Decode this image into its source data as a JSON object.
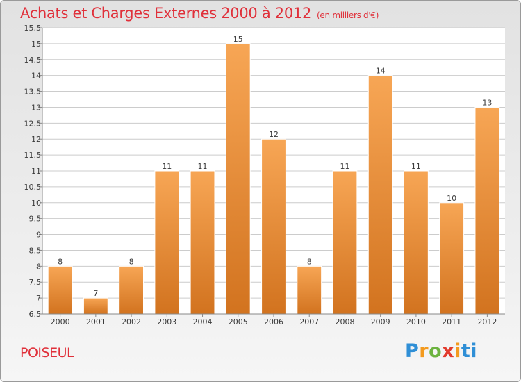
{
  "header": {
    "title": "Achats et Charges Externes 2000 à 2012",
    "unit": "(en milliers d'€)"
  },
  "footer": {
    "commune": "POISEUL",
    "logo_letters": [
      "P",
      "r",
      "o",
      "x",
      "i",
      "ti"
    ]
  },
  "colors": {
    "title": "#e0303a",
    "bar_top": "#f7a655",
    "bar_bottom": "#d2731f",
    "grid": "#cccccc"
  },
  "chart_data": {
    "type": "bar",
    "categories": [
      "2000",
      "2001",
      "2002",
      "2003",
      "2004",
      "2005",
      "2006",
      "2007",
      "2008",
      "2009",
      "2010",
      "2011",
      "2012"
    ],
    "values": [
      8,
      7,
      8,
      11,
      11,
      15,
      12,
      8,
      11,
      14,
      11,
      10,
      13
    ],
    "data_labels": [
      "8",
      "7",
      "8",
      "11",
      "11",
      "15",
      "12",
      "8",
      "11",
      "14",
      "11",
      "10",
      "13"
    ],
    "yticks": [
      "6.5",
      "7",
      "7.5",
      "8",
      "8.5",
      "9",
      "9.5",
      "10",
      "10.5",
      "11",
      "11.5",
      "12",
      "12.5",
      "13",
      "13.5",
      "14",
      "14.5",
      "15",
      "15.5"
    ],
    "ylim": [
      6.5,
      15.5
    ],
    "grid": true,
    "legend": "none"
  }
}
